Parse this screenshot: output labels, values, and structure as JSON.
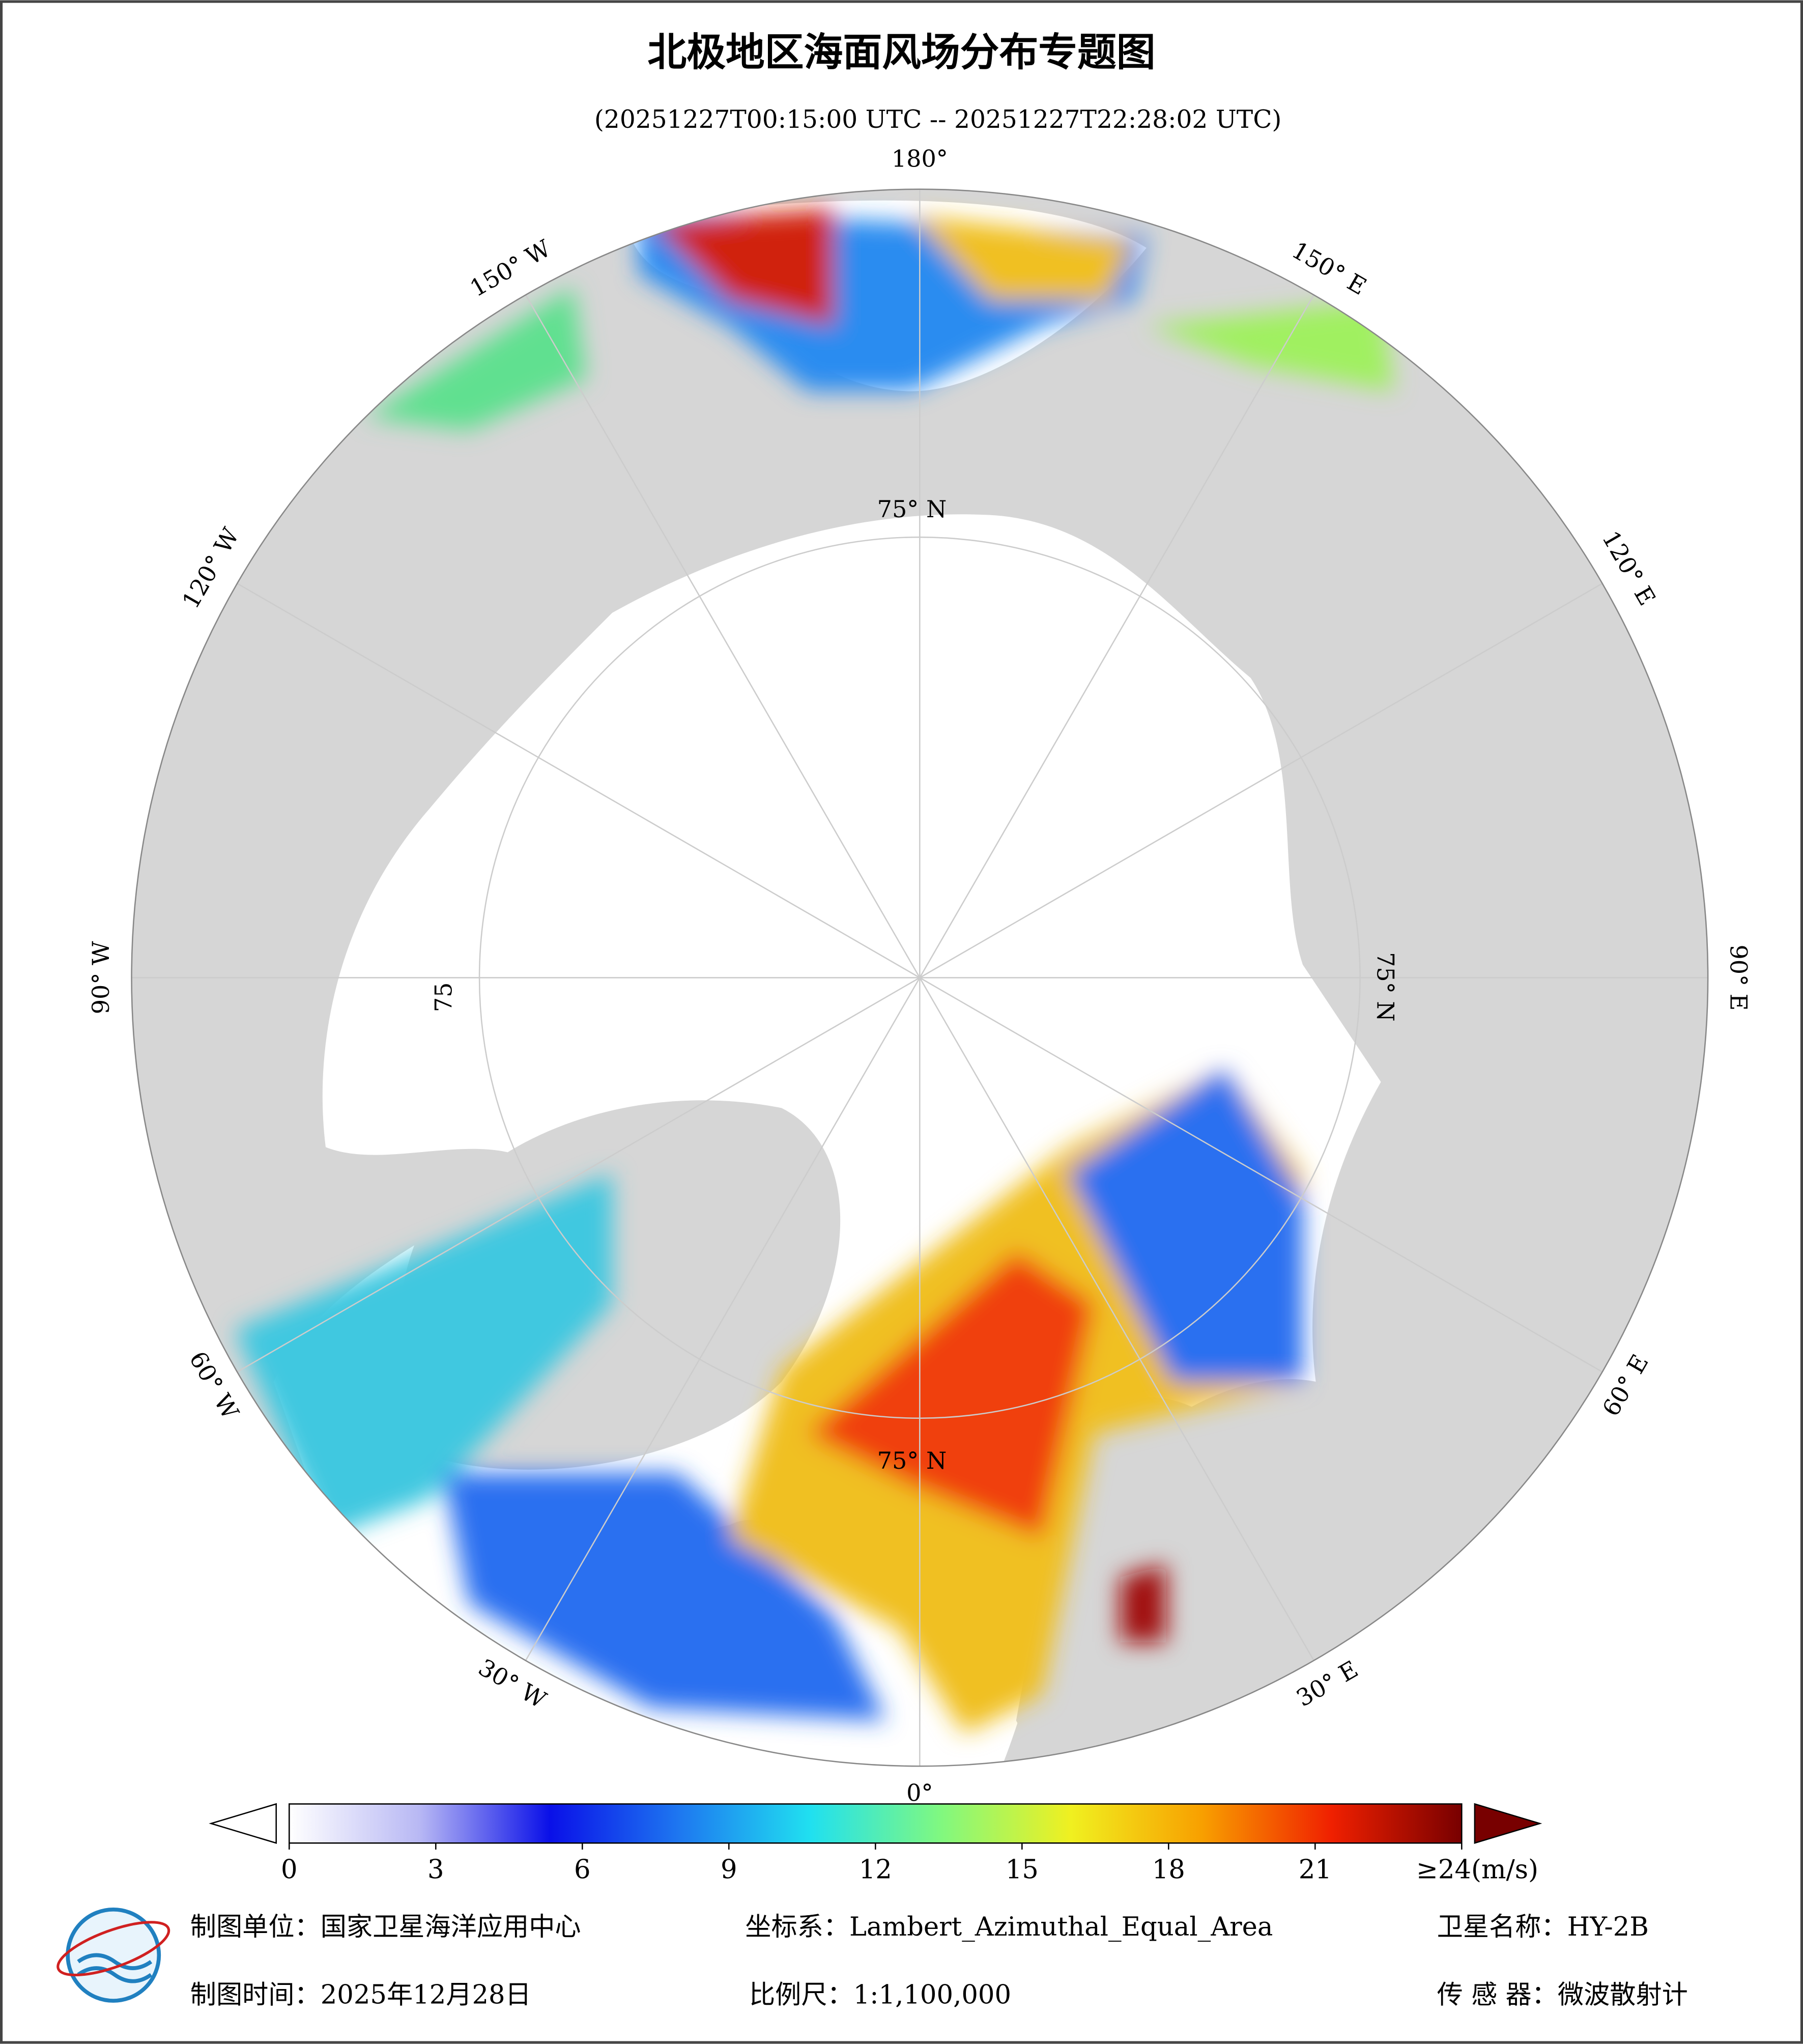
{
  "header": {
    "title": "北极地区海面风场分布专题图",
    "subtitle": "(20251227T00:15:00 UTC -- 20251227T22:28:02 UTC)"
  },
  "map": {
    "lon_labels": [
      "180°",
      "150° E",
      "120° E",
      "90° E",
      "60° E",
      "30° E",
      "0°",
      "30° W",
      "60° W",
      "90° W",
      "120° W",
      "150° W"
    ],
    "lat_labels": [
      "75° N",
      "75° N",
      "75° N",
      "75"
    ]
  },
  "colorbar": {
    "range": [
      0,
      24
    ],
    "ticks": [
      0,
      3,
      6,
      9,
      12,
      15,
      18,
      21,
      {
        "value": 24,
        "label": "≥24(m/s)"
      }
    ],
    "colors": [
      "#ffffff",
      "#b8b8f4",
      "#0a10e8",
      "#1e78f0",
      "#20e0f0",
      "#80f880",
      "#f0f020",
      "#f8a000",
      "#f02000",
      "#780000"
    ]
  },
  "footer": {
    "unit": "制图单位：国家卫星海洋应用中心",
    "crs": "坐标系：Lambert_Azimuthal_Equal_Area",
    "satellite": "卫星名称：HY-2B",
    "date": "制图时间：2025年12月28日",
    "scale": "比例尺：1:1,100,000",
    "sensor": "传 感 器：微波散射计"
  }
}
